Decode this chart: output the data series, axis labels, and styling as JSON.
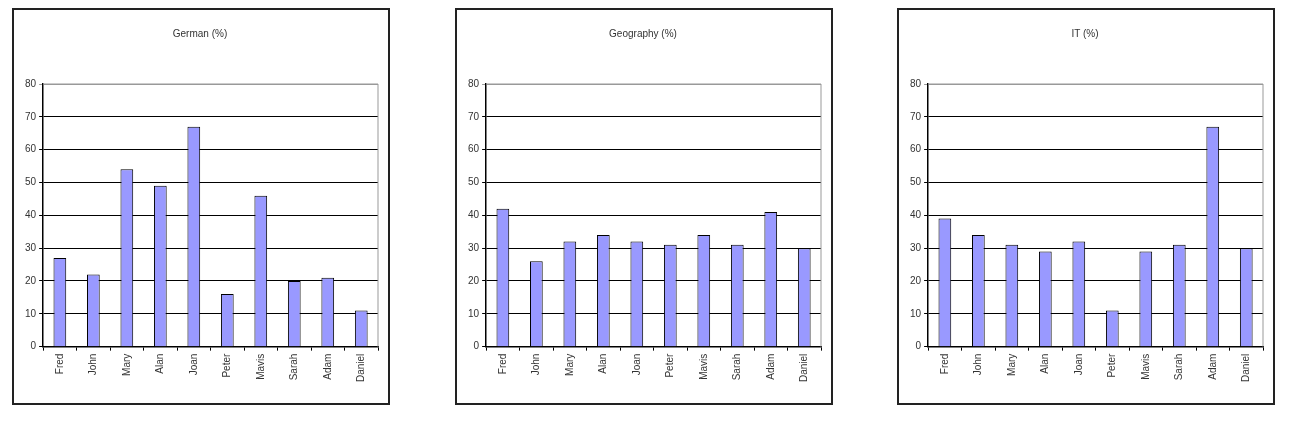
{
  "chart_data": [
    {
      "type": "bar",
      "title": "German (%)",
      "categories": [
        "Fred",
        "John",
        "Mary",
        "Alan",
        "Joan",
        "Peter",
        "Mavis",
        "Sarah",
        "Adam",
        "Daniel"
      ],
      "values": [
        27,
        22,
        54,
        49,
        67,
        16,
        46,
        20,
        21,
        11
      ],
      "color": "#9999ff",
      "ylim": [
        0,
        80
      ],
      "yticks": [
        0,
        10,
        20,
        30,
        40,
        50,
        60,
        70,
        80
      ],
      "grid": "y",
      "legend": false
    },
    {
      "type": "bar",
      "title": "Geography (%)",
      "categories": [
        "Fred",
        "John",
        "Mary",
        "Alan",
        "Joan",
        "Peter",
        "Mavis",
        "Sarah",
        "Adam",
        "Daniel"
      ],
      "values": [
        42,
        26,
        32,
        34,
        32,
        31,
        34,
        31,
        41,
        30
      ],
      "color": "#9999ff",
      "ylim": [
        0,
        80
      ],
      "yticks": [
        0,
        10,
        20,
        30,
        40,
        50,
        60,
        70,
        80
      ],
      "grid": "y",
      "legend": false
    },
    {
      "type": "bar",
      "title": "IT (%)",
      "categories": [
        "Fred",
        "John",
        "Mary",
        "Alan",
        "Joan",
        "Peter",
        "Mavis",
        "Sarah",
        "Adam",
        "Daniel"
      ],
      "values": [
        39,
        34,
        31,
        29,
        32,
        11,
        29,
        31,
        67,
        30
      ],
      "color": "#9999ff",
      "ylim": [
        0,
        80
      ],
      "yticks": [
        0,
        10,
        20,
        30,
        40,
        50,
        60,
        70,
        80
      ],
      "grid": "y",
      "legend": false
    }
  ]
}
